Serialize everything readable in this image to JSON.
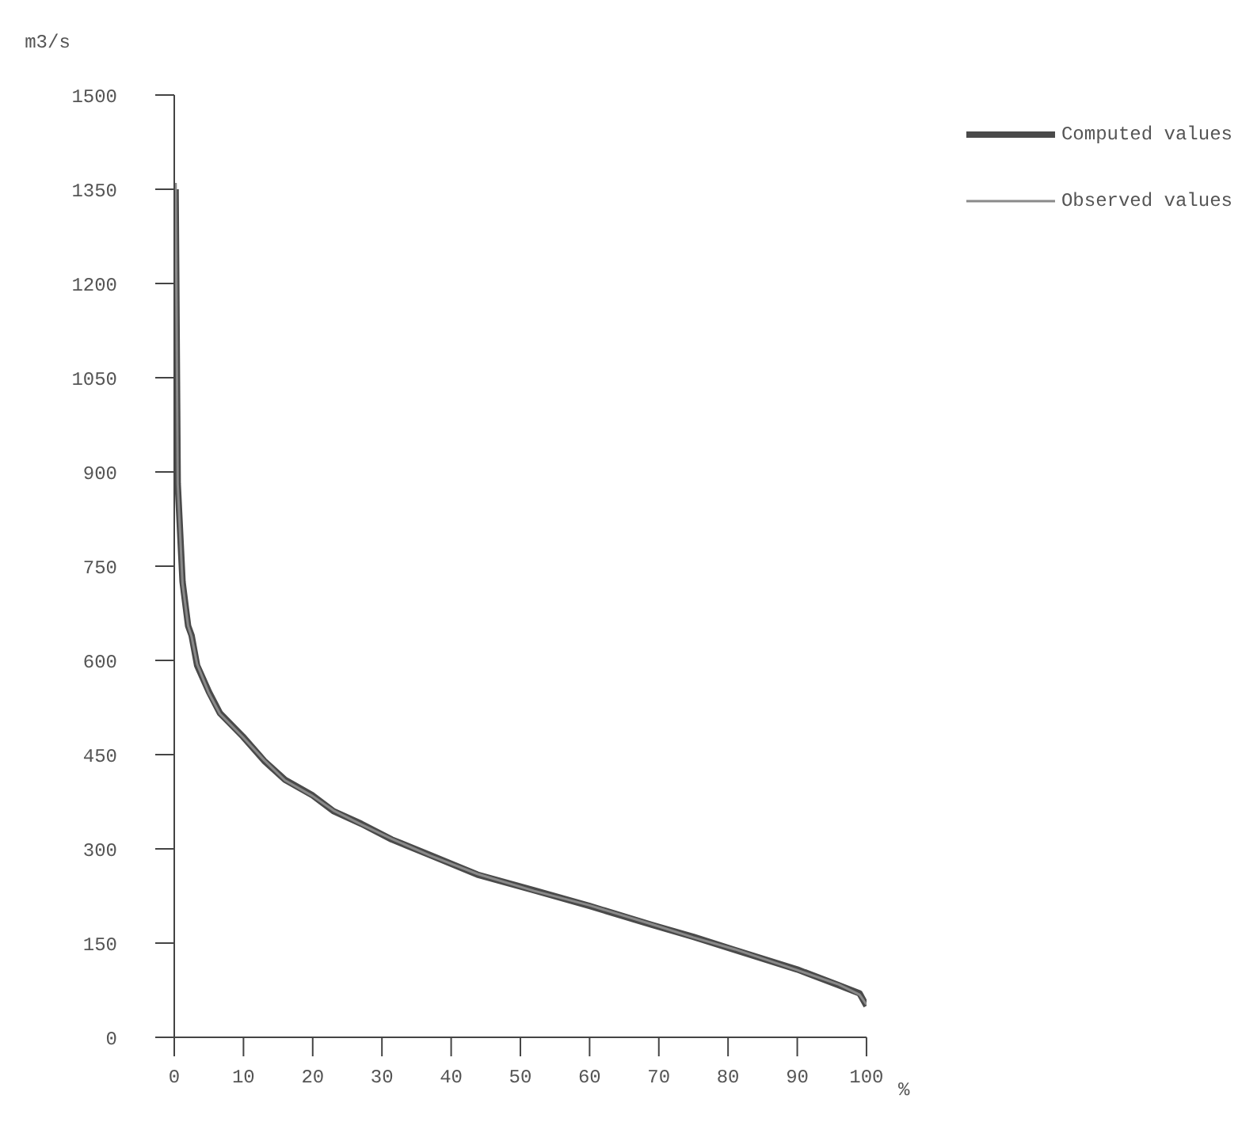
{
  "chart_data": {
    "type": "line",
    "xlabel": "%",
    "ylabel": "m3/s",
    "xlim": [
      0,
      100
    ],
    "xticks": [
      0,
      10,
      20,
      30,
      40,
      50,
      60,
      70,
      80,
      90,
      100
    ],
    "ylim": [
      0,
      1500
    ],
    "yticks": [
      0,
      150,
      300,
      450,
      600,
      750,
      900,
      1050,
      1200,
      1350,
      1500
    ],
    "grid": false,
    "legend": "top right",
    "marker": "none",
    "line_style": "solid",
    "series": [
      {
        "name": "Computed values",
        "color": "#4a4a4a",
        "x": [
          0.2,
          0.5,
          1.2,
          2,
          2.5,
          3.3,
          5,
          6.6,
          9.9,
          13,
          16,
          20,
          23,
          27,
          31.4,
          37,
          43.8,
          52,
          60,
          69,
          75,
          81,
          90,
          96,
          99,
          100
        ],
        "values": [
          1350,
          882,
          725,
          655,
          640,
          592,
          550,
          516,
          479,
          440,
          410,
          385,
          360,
          340,
          315,
          290,
          259,
          234,
          209,
          179,
          160,
          139,
          108,
          83,
          70,
          50
        ]
      },
      {
        "name": "Observed values",
        "color": "#8a8a8a",
        "x": [
          0.2,
          0.5,
          1.2,
          2,
          2.5,
          3.3,
          5,
          6.6,
          9.9,
          13,
          16,
          20,
          23,
          27,
          31.4,
          37,
          43.8,
          52,
          60,
          69,
          75,
          81,
          90,
          96,
          99,
          100
        ],
        "values": [
          1360,
          880,
          722,
          655,
          638,
          594,
          548,
          515,
          478,
          441,
          409,
          384,
          361,
          339,
          316,
          289,
          260,
          233,
          210,
          180,
          159,
          140,
          107,
          84,
          68,
          52
        ]
      }
    ]
  }
}
